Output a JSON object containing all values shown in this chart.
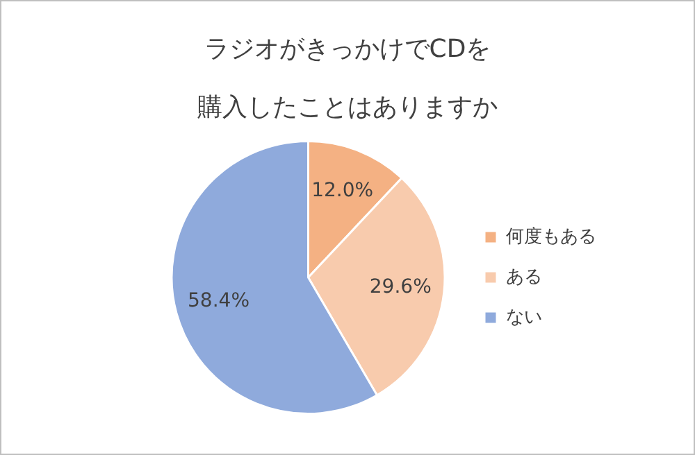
{
  "chart_data": {
    "type": "pie",
    "title": "ラジオがきっかけでCDを購入したことはありますか",
    "categories": [
      "何度もある",
      "ある",
      "ない"
    ],
    "values": [
      12.0,
      29.6,
      58.4
    ],
    "colors": [
      "#f4b183",
      "#f8cbad",
      "#8faadc"
    ],
    "value_labels": [
      "12.0%",
      "29.6%",
      "58.4%"
    ],
    "legend": "right"
  }
}
